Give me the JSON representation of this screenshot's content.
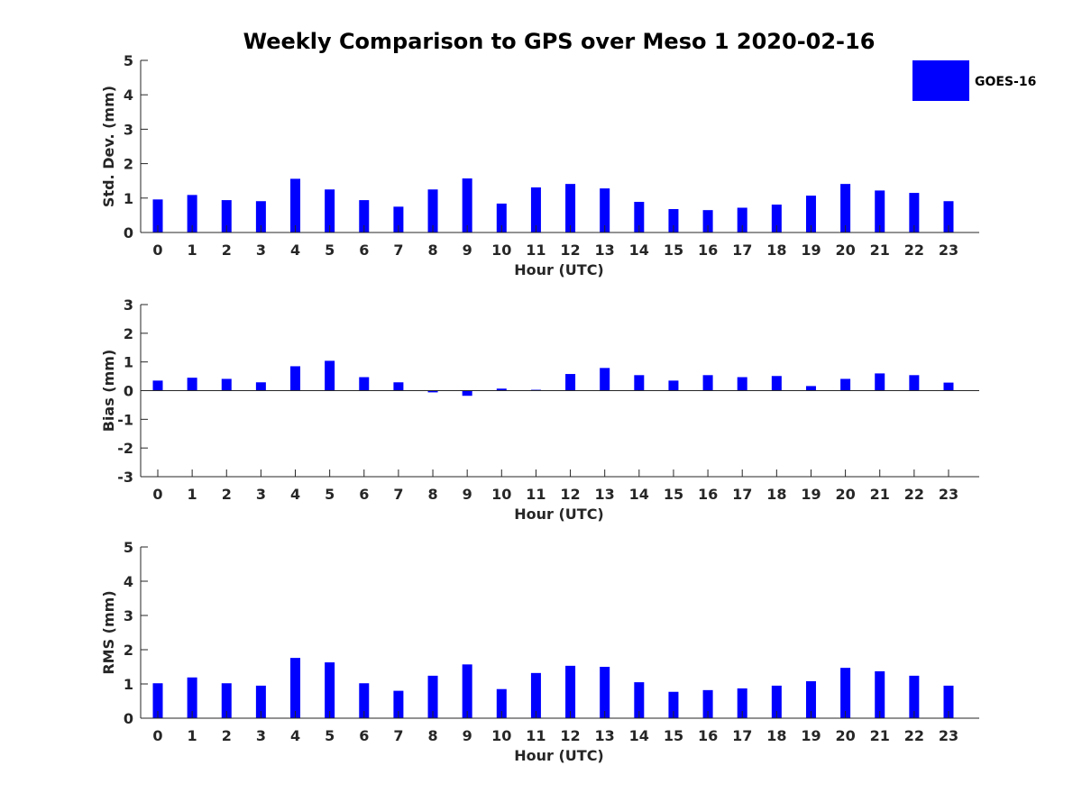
{
  "figure": {
    "title": "Weekly Comparison to GPS over Meso 1 2020-02-16",
    "bar_color": "#0000ff",
    "axis_color": "#262626"
  },
  "legend": {
    "label": "GOES-16",
    "placement": "top-right"
  },
  "chart_data": [
    {
      "type": "bar",
      "name": "std-dev",
      "ylabel": "Std. Dev. (mm)",
      "xlabel": "Hour (UTC)",
      "ylim": [
        0,
        5
      ],
      "yticks": [
        0,
        1,
        2,
        3,
        4,
        5
      ],
      "categories": [
        "0",
        "1",
        "2",
        "3",
        "4",
        "5",
        "6",
        "7",
        "8",
        "9",
        "10",
        "11",
        "12",
        "13",
        "14",
        "15",
        "16",
        "17",
        "18",
        "19",
        "20",
        "21",
        "22",
        "23"
      ],
      "series": [
        {
          "name": "GOES-16",
          "values": [
            0.96,
            1.09,
            0.94,
            0.91,
            1.56,
            1.25,
            0.94,
            0.75,
            1.25,
            1.57,
            0.84,
            1.31,
            1.41,
            1.28,
            0.89,
            0.68,
            0.65,
            0.72,
            0.81,
            1.07,
            1.41,
            1.22,
            1.15,
            0.91
          ]
        }
      ]
    },
    {
      "type": "bar",
      "name": "bias",
      "ylabel": "Bias (mm)",
      "xlabel": "Hour (UTC)",
      "ylim": [
        -3,
        3
      ],
      "yticks": [
        -3,
        -2,
        -1,
        0,
        1,
        2,
        3
      ],
      "zero_line": true,
      "categories": [
        "0",
        "1",
        "2",
        "3",
        "4",
        "5",
        "6",
        "7",
        "8",
        "9",
        "10",
        "11",
        "12",
        "13",
        "14",
        "15",
        "16",
        "17",
        "18",
        "19",
        "20",
        "21",
        "22",
        "23"
      ],
      "series": [
        {
          "name": "GOES-16",
          "values": [
            0.35,
            0.45,
            0.41,
            0.29,
            0.85,
            1.04,
            0.47,
            0.29,
            -0.06,
            -0.18,
            0.07,
            0.03,
            0.58,
            0.79,
            0.54,
            0.35,
            0.54,
            0.47,
            0.51,
            0.16,
            0.41,
            0.6,
            0.54,
            0.28
          ]
        }
      ]
    },
    {
      "type": "bar",
      "name": "rms",
      "ylabel": "RMS (mm)",
      "xlabel": "Hour (UTC)",
      "ylim": [
        0,
        5
      ],
      "yticks": [
        0,
        1,
        2,
        3,
        4,
        5
      ],
      "categories": [
        "0",
        "1",
        "2",
        "3",
        "4",
        "5",
        "6",
        "7",
        "8",
        "9",
        "10",
        "11",
        "12",
        "13",
        "14",
        "15",
        "16",
        "17",
        "18",
        "19",
        "20",
        "21",
        "22",
        "23"
      ],
      "series": [
        {
          "name": "GOES-16",
          "values": [
            1.02,
            1.19,
            1.02,
            0.95,
            1.76,
            1.63,
            1.02,
            0.8,
            1.24,
            1.57,
            0.85,
            1.32,
            1.53,
            1.5,
            1.05,
            0.77,
            0.82,
            0.87,
            0.95,
            1.08,
            1.47,
            1.37,
            1.24,
            0.95
          ]
        }
      ]
    }
  ]
}
